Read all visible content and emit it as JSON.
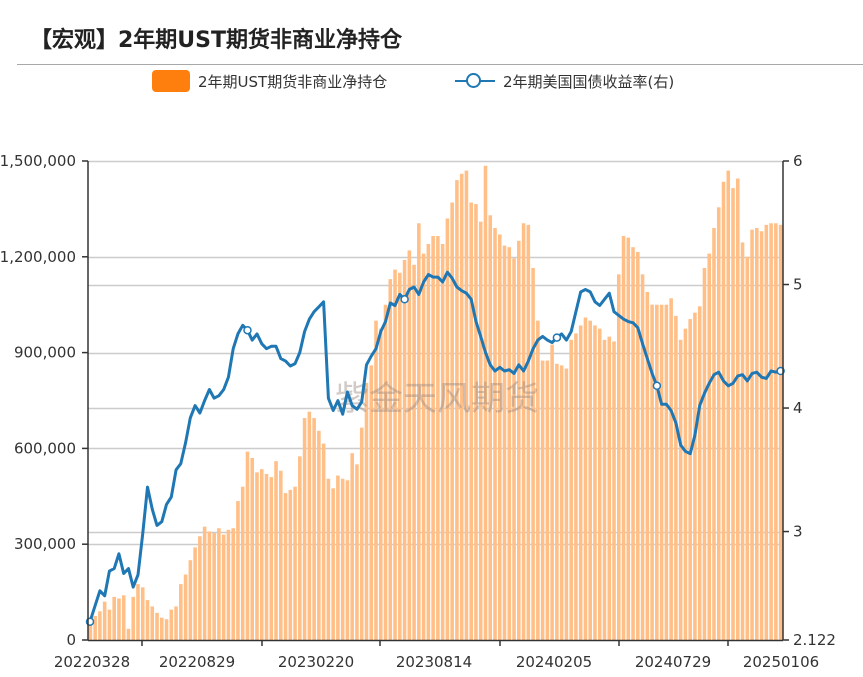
{
  "header": {
    "title": "【宏观】2年期UST期货非商业净持仓"
  },
  "legend": [
    {
      "label": "2年期UST期货非商业净持仓",
      "type": "bar",
      "color": "#ff7f0e"
    },
    {
      "label": "2年期美国国债收益率(右)",
      "type": "line",
      "color": "#1f77b4"
    }
  ],
  "watermark": "紫金天风期货",
  "colors": {
    "bar": "#ffbf87",
    "bar_legend": "#ff7f0e",
    "line": "#1f77b4",
    "grid": "#cccccc",
    "axis": "#333333"
  },
  "chart_data": {
    "type": "bar+line",
    "title": "【宏观】2年期UST期货非商业净持仓",
    "xlabel": "",
    "ylabel_left": "",
    "ylabel_right": "",
    "x_tick_labels": [
      "20220328",
      "20220829",
      "20230220",
      "20230814",
      "20240205",
      "20240729",
      "20250106"
    ],
    "y_left_ticks": [
      0,
      300000,
      600000,
      900000,
      1200000,
      1500000
    ],
    "y_left_tick_labels": [
      "0",
      "300,000",
      "600,000",
      "900,000",
      "1,200,000",
      "1,500,000"
    ],
    "y_left_range": [
      0,
      1500000
    ],
    "y_right_ticks": [
      2.122,
      3,
      4,
      5,
      6
    ],
    "y_right_tick_labels": [
      "2.122",
      "3",
      "4",
      "5",
      "6"
    ],
    "y_right_range": [
      2.122,
      6
    ],
    "grid": true,
    "legend_position": "top",
    "series": [
      {
        "name": "2年期UST期货非商业净持仓",
        "type": "bar",
        "axis": "left",
        "values": [
          60000,
          75000,
          90000,
          120000,
          95000,
          135000,
          130000,
          140000,
          35000,
          135000,
          175000,
          165000,
          125000,
          105000,
          85000,
          70000,
          65000,
          95000,
          105000,
          175000,
          205000,
          250000,
          290000,
          325000,
          355000,
          340000,
          335000,
          350000,
          330000,
          345000,
          350000,
          435000,
          480000,
          590000,
          570000,
          525000,
          535000,
          520000,
          510000,
          560000,
          530000,
          460000,
          470000,
          480000,
          575000,
          695000,
          715000,
          695000,
          655000,
          615000,
          505000,
          475000,
          515000,
          505000,
          500000,
          585000,
          550000,
          665000,
          805000,
          860000,
          1000000,
          975000,
          1050000,
          1130000,
          1160000,
          1150000,
          1190000,
          1220000,
          1175000,
          1305000,
          1210000,
          1240000,
          1265000,
          1265000,
          1240000,
          1320000,
          1370000,
          1440000,
          1460000,
          1470000,
          1370000,
          1365000,
          1310000,
          1485000,
          1330000,
          1290000,
          1270000,
          1235000,
          1230000,
          1195000,
          1250000,
          1305000,
          1300000,
          1165000,
          1000000,
          875000,
          875000,
          925000,
          865000,
          860000,
          850000,
          940000,
          960000,
          985000,
          1010000,
          1000000,
          985000,
          975000,
          940000,
          950000,
          935000,
          1145000,
          1265000,
          1260000,
          1230000,
          1215000,
          1145000,
          1090000,
          1050000,
          1050000,
          1050000,
          1050000,
          1070000,
          1015000,
          940000,
          975000,
          1005000,
          1025000,
          1045000,
          1165000,
          1210000,
          1290000,
          1355000,
          1435000,
          1470000,
          1415000,
          1445000,
          1245000,
          1200000,
          1285000,
          1290000,
          1280000,
          1300000,
          1305000,
          1305000,
          1300000
        ],
        "color": "#ffbf87"
      },
      {
        "name": "2年期美国国债收益率(右)",
        "type": "line",
        "axis": "right",
        "values": [
          2.27,
          2.4,
          2.52,
          2.48,
          2.68,
          2.7,
          2.82,
          2.66,
          2.7,
          2.55,
          2.65,
          2.98,
          3.36,
          3.18,
          3.05,
          3.08,
          3.22,
          3.28,
          3.5,
          3.55,
          3.72,
          3.92,
          4.02,
          3.96,
          4.06,
          4.15,
          4.08,
          4.1,
          4.15,
          4.25,
          4.48,
          4.6,
          4.67,
          4.63,
          4.55,
          4.6,
          4.52,
          4.48,
          4.5,
          4.5,
          4.4,
          4.38,
          4.34,
          4.36,
          4.45,
          4.62,
          4.72,
          4.78,
          4.82,
          4.86,
          4.08,
          3.98,
          4.06,
          3.95,
          4.13,
          4.02,
          3.99,
          4.05,
          4.35,
          4.42,
          4.48,
          4.62,
          4.7,
          4.85,
          4.83,
          4.92,
          4.88,
          4.96,
          4.98,
          4.92,
          5.02,
          5.08,
          5.06,
          5.06,
          5.02,
          5.1,
          5.05,
          4.98,
          4.95,
          4.93,
          4.88,
          4.7,
          4.58,
          4.45,
          4.35,
          4.3,
          4.33,
          4.3,
          4.31,
          4.28,
          4.35,
          4.3,
          4.38,
          4.48,
          4.55,
          4.58,
          4.55,
          4.53,
          4.57,
          4.6,
          4.55,
          4.62,
          4.78,
          4.94,
          4.96,
          4.94,
          4.86,
          4.83,
          4.88,
          4.93,
          4.78,
          4.75,
          4.72,
          4.7,
          4.69,
          4.65,
          4.52,
          4.4,
          4.28,
          4.18,
          4.03,
          4.03,
          3.98,
          3.88,
          3.7,
          3.65,
          3.63,
          3.78,
          4.02,
          4.12,
          4.2,
          4.27,
          4.29,
          4.22,
          4.18,
          4.2,
          4.26,
          4.27,
          4.22,
          4.28,
          4.29,
          4.25,
          4.24,
          4.3,
          4.29,
          4.3
        ],
        "color": "#1f77b4",
        "markers_at_indices": [
          0,
          33,
          66,
          98,
          119,
          145
        ]
      }
    ]
  }
}
